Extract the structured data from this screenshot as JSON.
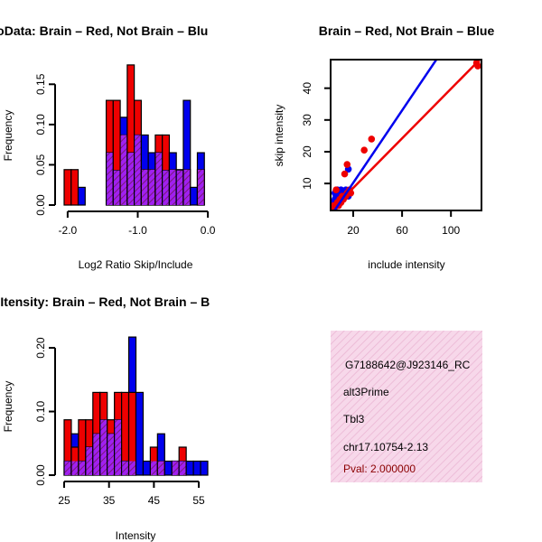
{
  "colors": {
    "red": "#ee0000",
    "blue": "#0000ee",
    "overlap": "#a020f0",
    "overlap_hatch": "#7a1a7a",
    "info_bg": "#f7d8ea",
    "info_hatch": "#eab4d2",
    "pval": "#8b0000"
  },
  "chart_data": [
    {
      "id": "ratio_hist",
      "type": "bar",
      "title": "RatioData: Brain – Red, Not Brain – Blu",
      "xlabel": "Log2 Ratio Skip/Include",
      "ylabel": "Frequency",
      "xlim": [
        -2.05,
        0.05
      ],
      "ylim": [
        0,
        0.175
      ],
      "xticks": [
        -2.0,
        -1.0,
        0.0
      ],
      "xtick_labels": [
        "-2.0",
        "-1.0",
        "0.0"
      ],
      "yticks": [
        0.0,
        0.05,
        0.1,
        0.15
      ],
      "ytick_labels": [
        "0.00",
        "0.05",
        "0.10",
        "0.15"
      ],
      "bin_edges": [
        -2.05,
        -1.95,
        -1.85,
        -1.75,
        -1.65,
        -1.55,
        -1.45,
        -1.35,
        -1.25,
        -1.15,
        -1.05,
        -0.95,
        -0.85,
        -0.75,
        -0.65,
        -0.55,
        -0.45,
        -0.35,
        -0.25,
        -0.15,
        -0.05
      ],
      "series": [
        {
          "name": "Brain",
          "color": "red",
          "values": [
            0.044,
            0.044,
            0,
            0,
            0,
            0,
            0.13,
            0.13,
            0.087,
            0.174,
            0.13,
            0.044,
            0.044,
            0.087,
            0.087,
            0.044,
            0.044,
            0.044,
            0,
            0.044
          ]
        },
        {
          "name": "Not Brain",
          "color": "blue",
          "values": [
            0,
            0,
            0.022,
            0,
            0,
            0,
            0.065,
            0.043,
            0.109,
            0.065,
            0.087,
            0.087,
            0.065,
            0.065,
            0.043,
            0.065,
            0.043,
            0.13,
            0.022,
            0.065
          ]
        }
      ]
    },
    {
      "id": "intensity_scatter",
      "type": "scatter",
      "title": "Brain – Red, Not Brain – Blue",
      "xlabel": "include intensity",
      "ylabel": "skip intensity",
      "xlim": [
        1.5,
        125
      ],
      "ylim": [
        1.5,
        49
      ],
      "xticks": [
        20,
        60,
        100
      ],
      "xtick_labels": [
        "20",
        "60",
        "100"
      ],
      "yticks": [
        10,
        20,
        30,
        40
      ],
      "ytick_labels": [
        "10",
        "20",
        "30",
        "40"
      ],
      "series": [
        {
          "name": "Brain",
          "color": "red",
          "points": [
            [
              3,
              2
            ],
            [
              4,
              3
            ],
            [
              5,
              2.5
            ],
            [
              6,
              3
            ],
            [
              7,
              4
            ],
            [
              8,
              3
            ],
            [
              9,
              5
            ],
            [
              10,
              4
            ],
            [
              11,
              6
            ],
            [
              12,
              5
            ],
            [
              14,
              6
            ],
            [
              15,
              7
            ],
            [
              17,
              8
            ],
            [
              18,
              7
            ],
            [
              6,
              8
            ],
            [
              13,
              13
            ],
            [
              15,
              16
            ],
            [
              29,
              20.5
            ],
            [
              35,
              24
            ],
            [
              121,
              48
            ],
            [
              122,
              47
            ]
          ],
          "fit": {
            "intercept": 0.8,
            "slope": 0.39
          }
        },
        {
          "name": "Not Brain",
          "color": "blue",
          "points": [
            [
              3,
              3
            ],
            [
              4,
              4
            ],
            [
              5,
              5
            ],
            [
              5,
              7
            ],
            [
              6,
              6
            ],
            [
              7,
              5
            ],
            [
              7,
              8
            ],
            [
              8,
              7
            ],
            [
              9,
              6
            ],
            [
              10,
              8
            ],
            [
              11,
              5
            ],
            [
              12,
              7
            ],
            [
              13,
              6
            ],
            [
              14,
              8
            ],
            [
              15,
              7
            ],
            [
              16,
              6
            ],
            [
              9,
              4
            ],
            [
              5,
              4
            ],
            [
              16,
              14.5
            ]
          ],
          "fit": {
            "intercept": -1.2,
            "slope": 0.57
          }
        }
      ]
    },
    {
      "id": "intensity_hist",
      "type": "bar",
      "title": "Line Itensity: Brain – Red, Not Brain – B",
      "xlabel": "Intensity",
      "ylabel": "Frequency",
      "xlim": [
        25,
        57
      ],
      "ylim": [
        0,
        0.22
      ],
      "xticks": [
        25,
        35,
        45,
        55
      ],
      "xtick_labels": [
        "25",
        "35",
        "45",
        "55"
      ],
      "yticks": [
        0.0,
        0.1,
        0.2
      ],
      "ytick_labels": [
        "0.00",
        "0.10",
        "0.20"
      ],
      "bin_edges": [
        25,
        26.6,
        28.2,
        29.8,
        31.4,
        33,
        34.6,
        36.2,
        37.8,
        39.4,
        41,
        42.6,
        44.2,
        45.8,
        47.4,
        49,
        50.6,
        52.2,
        53.8,
        55.4,
        57
      ],
      "series": [
        {
          "name": "Brain",
          "color": "red",
          "values": [
            0.087,
            0.044,
            0.087,
            0.087,
            0.13,
            0.13,
            0.087,
            0.13,
            0.13,
            0.13,
            0,
            0,
            0.044,
            0.022,
            0,
            0.022,
            0.044,
            0,
            0,
            0
          ],
          "overlap_values": [
            0.022,
            0.022,
            0.022,
            0.044,
            0.065,
            0.087,
            0.065,
            0.087,
            0.022,
            0.022,
            0,
            0,
            0.022,
            0.022,
            0,
            0.022,
            0.022,
            0,
            0,
            0
          ]
        },
        {
          "name": "Not Brain",
          "color": "blue",
          "values": [
            0.022,
            0.065,
            0.022,
            0.044,
            0.065,
            0.087,
            0.065,
            0.087,
            0.022,
            0.217,
            0.13,
            0.022,
            0,
            0.065,
            0.022,
            0.022,
            0.022,
            0.022,
            0.022,
            0.022
          ]
        }
      ]
    }
  ],
  "info_box": {
    "lines": [
      "G7188642@J923146_RC",
      "alt3Prime",
      "Tbl3",
      "chr17.10754-2.13"
    ],
    "pval": "Pval: 2.000000"
  }
}
